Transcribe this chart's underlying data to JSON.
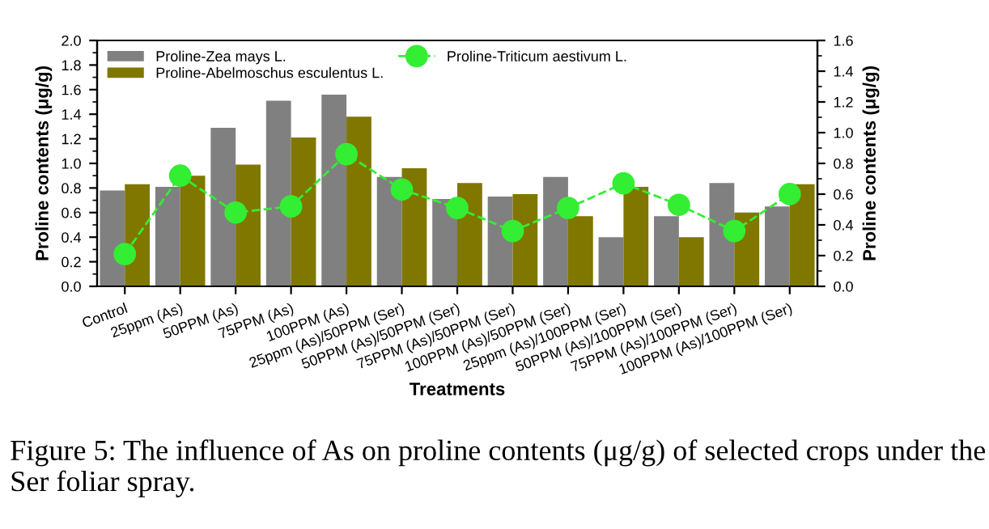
{
  "chart_data": {
    "type": "bar",
    "categories": [
      "Control",
      "25ppm (As)",
      "50PPM (As)",
      "75PPM (As)",
      "100PPM (As)",
      "25ppm (As)/50PPM (Ser)",
      "50PPM (As)/50PPM (Ser)",
      "75PPM (As)/50PPM (Ser)",
      "100PPM (As)/50PPM (Ser)",
      "25ppm (As)/100PPM (Ser)",
      "50PPM (As)/100PPM (Ser)",
      "75PPM (As)/100PPM (Ser)",
      "100PPM (As)/100PPM (Ser)"
    ],
    "series": [
      {
        "name": "Proline-Zea mays L.",
        "color": "#808080",
        "values": [
          0.78,
          0.81,
          1.29,
          1.51,
          1.56,
          0.89,
          0.71,
          0.73,
          0.89,
          0.4,
          0.57,
          0.84,
          0.65
        ]
      },
      {
        "name": "Proline-Abelmoschus esculentus L.",
        "color": "#7f7700",
        "values": [
          0.83,
          0.9,
          0.99,
          1.21,
          1.38,
          0.96,
          0.84,
          0.75,
          0.57,
          0.81,
          0.4,
          0.6,
          0.83
        ]
      },
      {
        "name": "Proline-Triticum aestivum L.",
        "type": "line",
        "axis": "y2",
        "color": "#33ee33",
        "marker": "circle",
        "line_style": "dashed",
        "values": [
          0.21,
          0.72,
          0.48,
          0.52,
          0.86,
          0.63,
          0.51,
          0.36,
          0.51,
          0.67,
          0.53,
          0.36,
          0.6
        ]
      }
    ],
    "xlabel": "Treatments",
    "ylabel": "Proline contents (μg/g)",
    "y2label": "Proline contents (μg/g)",
    "ylim": [
      0,
      2.0
    ],
    "yticks": [
      {
        "value": 0,
        "label": "0.0"
      },
      {
        "value": 0.2,
        "label": "0.2"
      },
      {
        "value": 0.4,
        "label": "0.4"
      },
      {
        "value": 0.6,
        "label": "0.6"
      },
      {
        "value": 0.8,
        "label": "0.8"
      },
      {
        "value": 1.0,
        "label": "1.0"
      },
      {
        "value": 1.2,
        "label": "1.2"
      },
      {
        "value": 1.4,
        "label": "1.4"
      },
      {
        "value": 1.6,
        "label": "1.6"
      },
      {
        "value": 1.8,
        "label": "1.8"
      },
      {
        "value": 2.0,
        "label": "2.0"
      }
    ],
    "y2lim": [
      0,
      1.6
    ],
    "y2ticks": [
      {
        "value": 0,
        "label": "0.0"
      },
      {
        "value": 0.2,
        "label": "0.2"
      },
      {
        "value": 0.4,
        "label": "0.4"
      },
      {
        "value": 0.6,
        "label": "0.6"
      },
      {
        "value": 0.8,
        "label": "0.8"
      },
      {
        "value": 1.0,
        "label": "1.0"
      },
      {
        "value": 1.2,
        "label": "1.2"
      },
      {
        "value": 1.4,
        "label": "1.4"
      },
      {
        "value": 1.6,
        "label": "1.6"
      }
    ],
    "legend": "top left",
    "grid": false,
    "annotations": [
      "Figure 5: The influence of As on proline contents (μg/g) of selected crops under the Ser foliar spray."
    ]
  }
}
